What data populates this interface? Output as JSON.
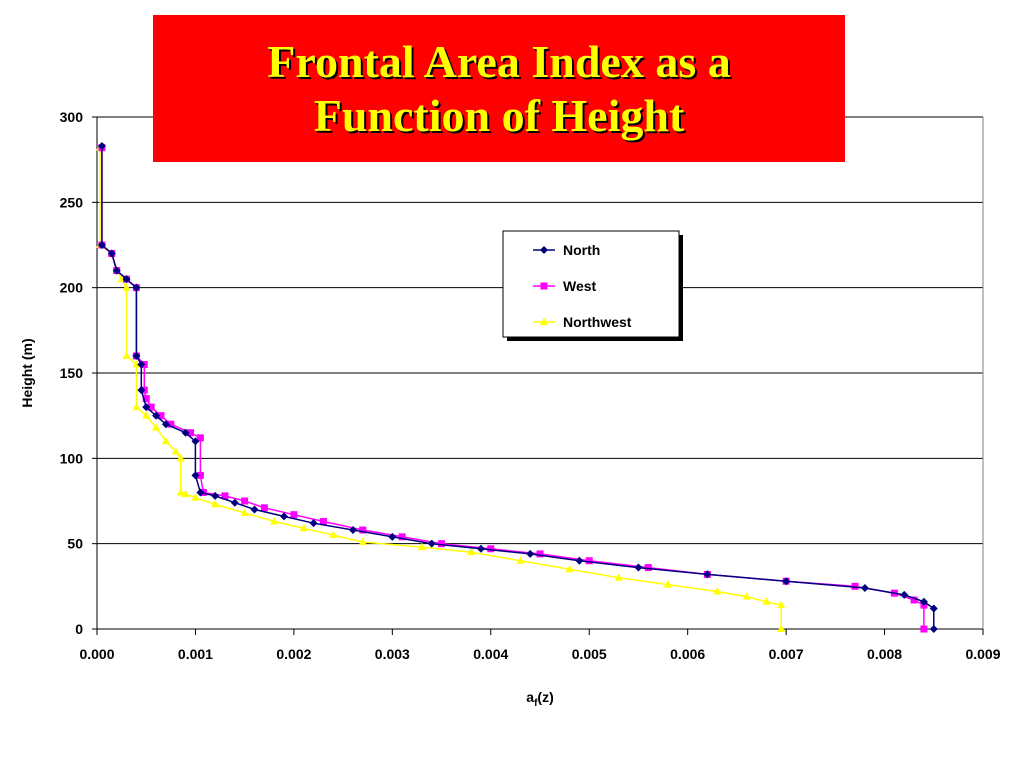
{
  "slide": {
    "title_line1": "Frontal Area Index as a",
    "title_line2": "Function of Height"
  },
  "chart_data": {
    "type": "line",
    "xlabel_main": "a",
    "xlabel_sub": "f",
    "xlabel_tail": "(z)",
    "ylabel": "Height (m)",
    "xlim": [
      0,
      0.009
    ],
    "ylim": [
      0,
      300
    ],
    "x_ticks": [
      "0.000",
      "0.001",
      "0.002",
      "0.003",
      "0.004",
      "0.005",
      "0.006",
      "0.007",
      "0.008",
      "0.009"
    ],
    "y_ticks": [
      "0",
      "50",
      "100",
      "150",
      "200",
      "250",
      "300"
    ],
    "grid": "horizontal",
    "legend_position": "right-of-center",
    "series": [
      {
        "name": "North",
        "color": "#000080",
        "marker": "diamond",
        "points": [
          [
            0.0085,
            0
          ],
          [
            0.0085,
            12
          ],
          [
            0.0084,
            16
          ],
          [
            0.0082,
            20
          ],
          [
            0.0078,
            24
          ],
          [
            0.007,
            28
          ],
          [
            0.0062,
            32
          ],
          [
            0.0055,
            36
          ],
          [
            0.0049,
            40
          ],
          [
            0.0044,
            44
          ],
          [
            0.0039,
            47
          ],
          [
            0.0034,
            50
          ],
          [
            0.003,
            54
          ],
          [
            0.0026,
            58
          ],
          [
            0.0022,
            62
          ],
          [
            0.0019,
            66
          ],
          [
            0.0016,
            70
          ],
          [
            0.0014,
            74
          ],
          [
            0.0012,
            78
          ],
          [
            0.00105,
            80
          ],
          [
            0.001,
            90
          ],
          [
            0.001,
            110
          ],
          [
            0.0009,
            115
          ],
          [
            0.0007,
            120
          ],
          [
            0.0006,
            125
          ],
          [
            0.0005,
            130
          ],
          [
            0.00045,
            140
          ],
          [
            0.00045,
            155
          ],
          [
            0.0004,
            160
          ],
          [
            0.0004,
            200
          ],
          [
            0.0003,
            205
          ],
          [
            0.0002,
            210
          ],
          [
            0.00015,
            220
          ],
          [
            5e-05,
            225
          ],
          [
            5e-05,
            283
          ]
        ]
      },
      {
        "name": "West",
        "color": "#ff00ff",
        "marker": "square",
        "points": [
          [
            0.0084,
            0
          ],
          [
            0.0084,
            14
          ],
          [
            0.0083,
            17
          ],
          [
            0.0081,
            21
          ],
          [
            0.0077,
            25
          ],
          [
            0.007,
            28
          ],
          [
            0.0062,
            32
          ],
          [
            0.0056,
            36
          ],
          [
            0.005,
            40
          ],
          [
            0.0045,
            44
          ],
          [
            0.004,
            47
          ],
          [
            0.0035,
            50
          ],
          [
            0.0031,
            54
          ],
          [
            0.0027,
            58
          ],
          [
            0.0023,
            63
          ],
          [
            0.002,
            67
          ],
          [
            0.0017,
            71
          ],
          [
            0.0015,
            75
          ],
          [
            0.0013,
            78
          ],
          [
            0.00108,
            80
          ],
          [
            0.00105,
            90
          ],
          [
            0.00105,
            112
          ],
          [
            0.00095,
            115
          ],
          [
            0.00075,
            120
          ],
          [
            0.00065,
            125
          ],
          [
            0.00055,
            130
          ],
          [
            0.0005,
            135
          ],
          [
            0.00048,
            140
          ],
          [
            0.00048,
            155
          ],
          [
            0.0004,
            160
          ],
          [
            0.0004,
            200
          ],
          [
            0.0003,
            205
          ],
          [
            0.0002,
            210
          ],
          [
            0.00015,
            220
          ],
          [
            5e-05,
            225
          ],
          [
            5e-05,
            282
          ]
        ]
      },
      {
        "name": "Northwest",
        "color": "#ffff00",
        "marker": "triangle",
        "points": [
          [
            0.00695,
            0
          ],
          [
            0.00695,
            14
          ],
          [
            0.0068,
            16
          ],
          [
            0.0066,
            19
          ],
          [
            0.0063,
            22
          ],
          [
            0.0058,
            26
          ],
          [
            0.0053,
            30
          ],
          [
            0.0048,
            35
          ],
          [
            0.0043,
            40
          ],
          [
            0.0038,
            45
          ],
          [
            0.0033,
            48
          ],
          [
            0.0027,
            51
          ],
          [
            0.0024,
            55
          ],
          [
            0.0021,
            59
          ],
          [
            0.0018,
            63
          ],
          [
            0.0015,
            68
          ],
          [
            0.0012,
            73
          ],
          [
            0.001,
            77
          ],
          [
            0.0009,
            79
          ],
          [
            0.00085,
            80
          ],
          [
            0.00085,
            100
          ],
          [
            0.0008,
            104
          ],
          [
            0.0007,
            110
          ],
          [
            0.0006,
            118
          ],
          [
            0.0005,
            125
          ],
          [
            0.0004,
            130
          ],
          [
            0.0004,
            155
          ],
          [
            0.0003,
            160
          ],
          [
            0.0003,
            200
          ],
          [
            0.00025,
            205
          ],
          [
            0.0002,
            210
          ],
          [
            0.00015,
            220
          ],
          [
            3e-05,
            225
          ],
          [
            3e-05,
            282
          ]
        ]
      }
    ]
  }
}
